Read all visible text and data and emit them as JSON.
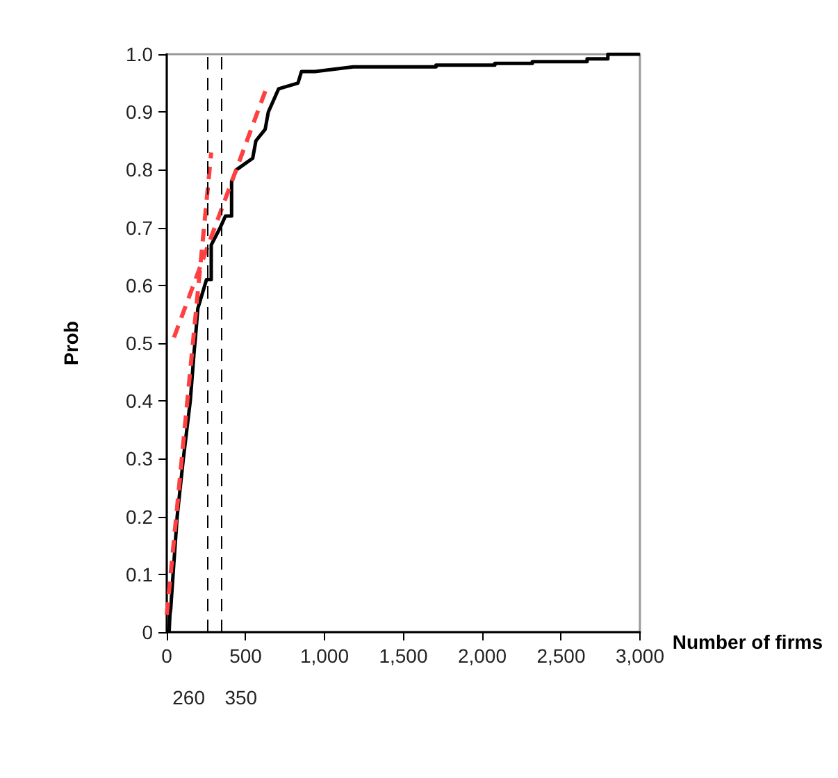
{
  "chart_data": {
    "type": "line",
    "xlabel": "Number of firms",
    "ylabel": "Prob",
    "xlim": [
      0,
      3000
    ],
    "ylim": [
      0,
      1
    ],
    "xticks": [
      0,
      500,
      {
        "value": 1000,
        "label": "1,000"
      },
      {
        "value": 1500,
        "label": "1,500"
      },
      {
        "value": 2000,
        "label": "2,000"
      },
      {
        "value": 2500,
        "label": "2,500"
      },
      {
        "value": 3000,
        "label": "3,000"
      }
    ],
    "yticks": [
      0,
      {
        "value": 0.1,
        "label": "0.1"
      },
      {
        "value": 0.2,
        "label": "0.2"
      },
      {
        "value": 0.3,
        "label": "0.3"
      },
      {
        "value": 0.4,
        "label": "0.4"
      },
      {
        "value": 0.5,
        "label": "0.5"
      },
      {
        "value": 0.6,
        "label": "0.6"
      },
      {
        "value": 0.7,
        "label": "0.7"
      },
      {
        "value": 0.8,
        "label": "0.8"
      },
      {
        "value": 0.9,
        "label": "0.9"
      },
      {
        "value": 1,
        "label": "1.0"
      }
    ],
    "grid": false,
    "marker": "none",
    "series": [
      {
        "color": "#000000",
        "line_style": "solid",
        "x": [
          15,
          20,
          25,
          40,
          66,
          105,
          149,
          175,
          182,
          197,
          252,
          282,
          282,
          339,
          372,
          411,
          411,
          442,
          545,
          565,
          624,
          644,
          709,
          832,
          854,
          940,
          1182,
          1707,
          1707,
          2080,
          2080,
          2318,
          2318,
          2665,
          2665,
          2797,
          2797,
          3000
        ],
        "values": [
          0,
          0.03,
          0.04,
          0.1,
          0.2,
          0.3,
          0.4,
          0.49,
          0.51,
          0.56,
          0.61,
          0.61,
          0.67,
          0.7,
          0.72,
          0.72,
          0.78,
          0.8,
          0.82,
          0.85,
          0.87,
          0.9,
          0.94,
          0.95,
          0.97,
          0.97,
          0.978,
          0.978,
          0.981,
          0.981,
          0.984,
          0.984,
          0.987,
          0.987,
          0.992,
          0.992,
          1,
          1
        ]
      },
      {
        "color": "#ff4040",
        "line_style": "dashed",
        "x": [
          0,
          282
        ],
        "values": [
          0.03,
          0.83
        ]
      },
      {
        "color": "#ff4040",
        "line_style": "dashed",
        "x": [
          46,
          637
        ],
        "values": [
          0.51,
          0.945
        ]
      }
    ],
    "ref_lines": [
      {
        "axis": "x",
        "value": 260,
        "label": "260",
        "color": "#000000",
        "line_style": "dashed"
      },
      {
        "axis": "x",
        "value": 350,
        "label": "350",
        "color": "#000000",
        "line_style": "dashed"
      }
    ]
  }
}
